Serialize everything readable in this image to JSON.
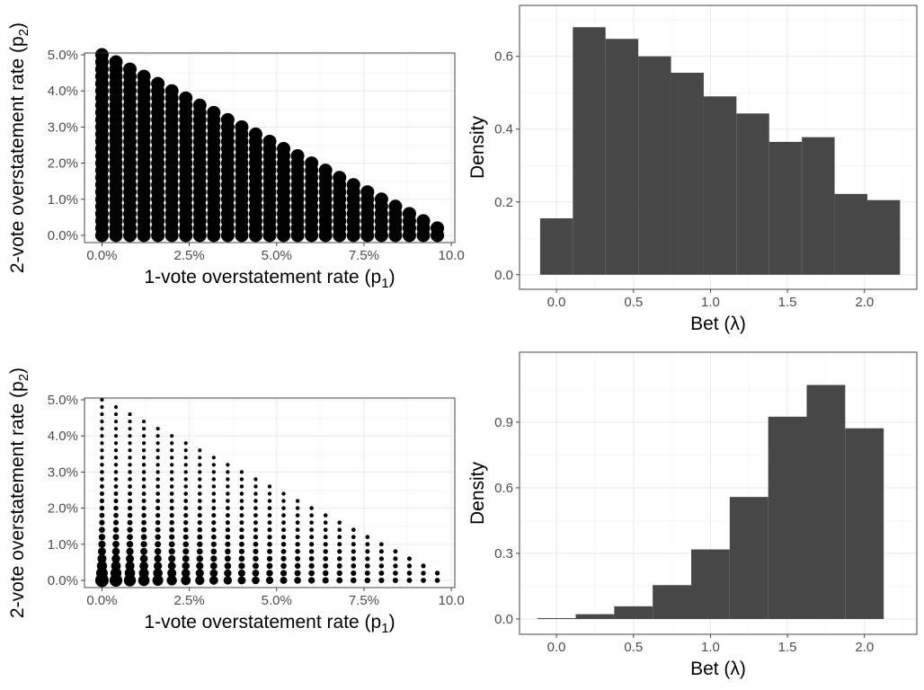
{
  "chart_data": [
    {
      "type": "scatter",
      "panel": "top-left",
      "xlabel": "1-vote overstatement rate (p1)",
      "ylabel": "2-vote overstatement rate (p2)",
      "xlabel_main": "1-vote overstatement rate (p",
      "xlabel_sub": "1",
      "ylabel_main": "2-vote overstatement rate (p",
      "ylabel_sub": "2",
      "paren": ")",
      "xlim": [
        -0.5,
        10.1
      ],
      "ylim": [
        -0.2,
        5.05
      ],
      "x_ticks": [
        0,
        2.5,
        5,
        7.5,
        10
      ],
      "x_tick_labels": [
        "0.0%",
        "2.5%",
        "5.0%",
        "7.5%",
        "10.0"
      ],
      "y_ticks": [
        0,
        1,
        2,
        3,
        4,
        5
      ],
      "y_tick_labels": [
        "0.0%",
        "1.0%",
        "2.0%",
        "3.0%",
        "4.0%",
        "5.0%"
      ],
      "grid_step_x": 0.4,
      "grid_step_y": 0.2,
      "constraint": "p1 + 2*p2 <= 10",
      "point_size": "uniform large"
    },
    {
      "type": "bar",
      "panel": "top-right",
      "xlabel": "Bet (λ)",
      "ylabel": "Density",
      "xlim": [
        -0.24,
        2.34
      ],
      "ylim": [
        -0.04,
        0.74
      ],
      "x_ticks": [
        0,
        0.5,
        1,
        1.5,
        2
      ],
      "x_tick_labels": [
        "0.0",
        "0.5",
        "1.0",
        "1.5",
        "2.0"
      ],
      "y_ticks": [
        0,
        0.2,
        0.4,
        0.6
      ],
      "y_tick_labels": [
        "0.0",
        "0.2",
        "0.4",
        "0.6"
      ],
      "bin_width": 0.2125,
      "bin_start": -0.10625,
      "values": [
        0.155,
        0.68,
        0.648,
        0.6,
        0.555,
        0.49,
        0.443,
        0.365,
        0.378,
        0.222,
        0.205
      ],
      "color": "#474747"
    },
    {
      "type": "scatter",
      "panel": "bottom-left",
      "xlabel": "1-vote overstatement rate (p1)",
      "ylabel": "2-vote overstatement rate (p2)",
      "xlabel_main": "1-vote overstatement rate (p",
      "xlabel_sub": "1",
      "ylabel_main": "2-vote overstatement rate (p",
      "ylabel_sub": "2",
      "paren": ")",
      "xlim": [
        -0.5,
        10.1
      ],
      "ylim": [
        -0.2,
        5.05
      ],
      "x_ticks": [
        0,
        2.5,
        5,
        7.5,
        10
      ],
      "x_tick_labels": [
        "0.0%",
        "2.5%",
        "5.0%",
        "7.5%",
        "10.0"
      ],
      "y_ticks": [
        0,
        1,
        2,
        3,
        4,
        5
      ],
      "y_tick_labels": [
        "0.0%",
        "1.0%",
        "2.0%",
        "3.0%",
        "4.0%",
        "5.0%"
      ],
      "grid_step_x": 0.4,
      "grid_step_y": 0.2,
      "constraint": "p1 + 2*p2 <= 10",
      "point_size": "larger for smaller p1 and p2"
    },
    {
      "type": "bar",
      "panel": "bottom-right",
      "xlabel": "Bet (λ)",
      "ylabel": "Density",
      "xlim": [
        -0.24,
        2.34
      ],
      "ylim": [
        -0.07,
        1.22
      ],
      "x_ticks": [
        0,
        0.5,
        1,
        1.5,
        2
      ],
      "x_tick_labels": [
        "0.0",
        "0.5",
        "1.0",
        "1.5",
        "2.0"
      ],
      "y_ticks": [
        0,
        0.3,
        0.6,
        0.9
      ],
      "y_tick_labels": [
        "0.0",
        "0.3",
        "0.6",
        "0.9"
      ],
      "bin_width": 0.25,
      "bin_start": -0.125,
      "values": [
        0.004,
        0.022,
        0.058,
        0.155,
        0.318,
        0.558,
        0.925,
        1.07,
        0.872
      ],
      "color": "#474747"
    }
  ]
}
